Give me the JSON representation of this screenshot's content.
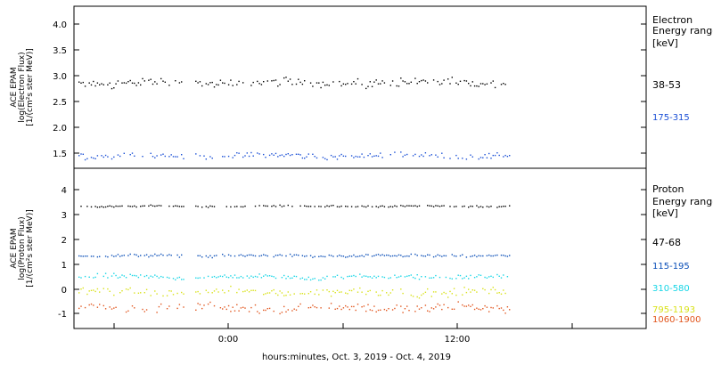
{
  "chart_data": [
    {
      "type": "scatter",
      "panel": "electron",
      "ylabel_lines": [
        "ACE EPAM",
        "log(Electron Flux)",
        "[1/(cm²s ster MeV)]"
      ],
      "yticks": [
        "1.5",
        "2.0",
        "2.5",
        "3.0",
        "3.5",
        "4.0"
      ],
      "ylim": [
        1.2,
        4.3
      ],
      "legend_title_lines": [
        "Electron",
        "Energy ranges",
        "[keV]"
      ],
      "series": [
        {
          "name": "38-53",
          "color": "#000000",
          "base": 2.87,
          "noise": 0.07
        },
        {
          "name": "175-315",
          "color": "#1a4fd6",
          "base": 1.46,
          "noise": 0.05
        }
      ]
    },
    {
      "type": "scatter",
      "panel": "proton",
      "ylabel_lines": [
        "ACE EPAM",
        "log(Proton Flux)",
        "[1/(cm²s ster MeV)]"
      ],
      "yticks": [
        "-1",
        "0",
        "1",
        "2",
        "3",
        "4"
      ],
      "ylim": [
        -1.6,
        4.8
      ],
      "legend_title_lines": [
        "Proton",
        "Energy ranges",
        "[keV]"
      ],
      "series": [
        {
          "name": "47-68",
          "color": "#000000",
          "base": 3.35,
          "noise": 0.03
        },
        {
          "name": "115-195",
          "color": "#0b4fb8",
          "base": 1.35,
          "noise": 0.05
        },
        {
          "name": "310-580",
          "color": "#18d6e6",
          "base": 0.5,
          "noise": 0.08
        },
        {
          "name": "795-1193",
          "color": "#d9e21a",
          "base": -0.12,
          "noise": 0.13
        },
        {
          "name": "1060-1900",
          "color": "#e2561e",
          "base": -0.75,
          "noise": 0.16
        }
      ]
    }
  ],
  "xaxis": {
    "tick_labels": [
      "0:00",
      "12:00"
    ],
    "xlabel": "hours:minutes, Oct.  3, 2019 - Oct.  4, 2019"
  }
}
